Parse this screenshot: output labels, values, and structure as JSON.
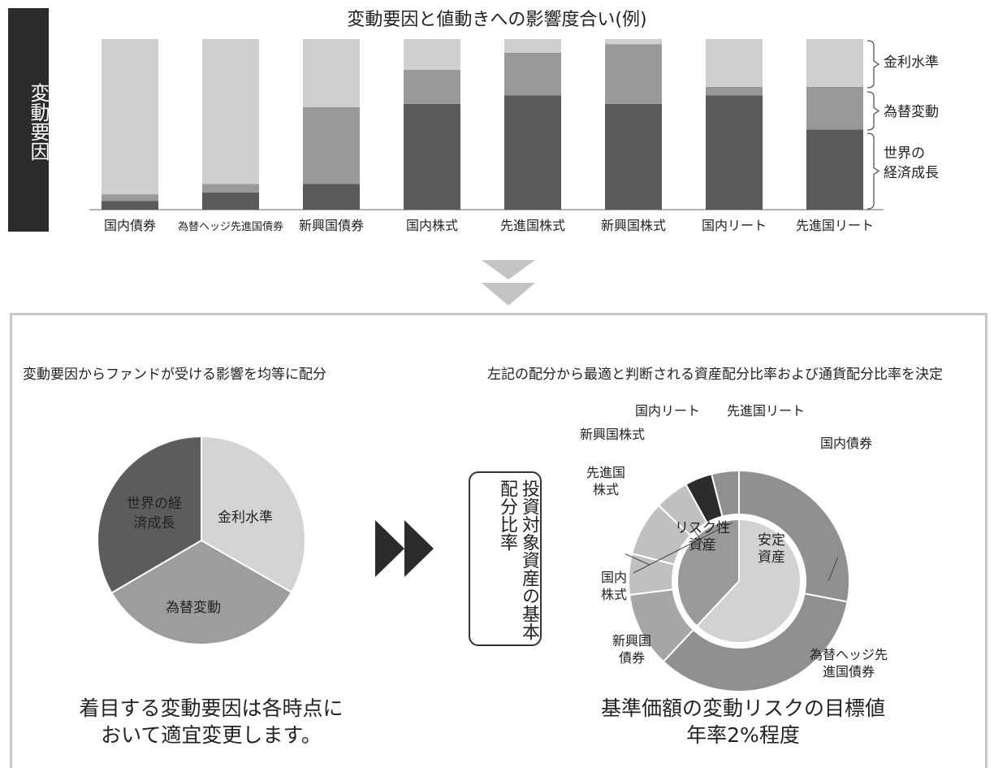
{
  "header": {
    "side_label": "変動要因",
    "title": "変動要因と値動きへの影響度合い(例)"
  },
  "chart_data": [
    {
      "type": "bar",
      "stacked": true,
      "title": "変動要因と値動きへの影響度合い(例)",
      "categories": [
        "国内債券",
        "為替ヘッジ先進国債券",
        "新興国債券",
        "国内株式",
        "先進国株式",
        "新興国株式",
        "国内リート",
        "先進国リート"
      ],
      "series": [
        {
          "name": "世界の経済成長",
          "values": [
            5,
            10,
            15,
            62,
            67,
            62,
            67,
            47
          ],
          "color": "#5a5a5a"
        },
        {
          "name": "為替変動",
          "values": [
            4,
            5,
            45,
            20,
            25,
            35,
            5,
            25
          ],
          "color": "#999999"
        },
        {
          "name": "金利水準",
          "values": [
            91,
            85,
            40,
            18,
            8,
            3,
            28,
            28
          ],
          "color": "#cfcfcf"
        }
      ],
      "ylim": [
        0,
        100
      ],
      "legend_placement": "right",
      "bracket_labels": [
        "金利水準",
        "為替変動",
        "世界の経済成長"
      ]
    },
    {
      "type": "pie",
      "title": "変動要因からファンドが受ける影響を均等に配分",
      "slices": [
        {
          "label": "金利水準",
          "value": 33.3,
          "color": "#d4d4d4"
        },
        {
          "label": "為替変動",
          "value": 33.3,
          "color": "#9d9d9d"
        },
        {
          "label": "世界の経済成長",
          "value": 33.4,
          "color": "#5c5c5c"
        }
      ]
    },
    {
      "type": "pie",
      "subtype": "donut",
      "title": "左記の配分から最適と判断される資産配分比率および通貨配分比率を決定",
      "inner": [
        {
          "label": "安定資産",
          "value": 62,
          "color": "#d2d2d2"
        },
        {
          "label": "リスク性資産",
          "value": 38,
          "color": "#9a9a9a"
        }
      ],
      "outer": [
        {
          "label": "国内債券",
          "value": 28,
          "color": "#909090"
        },
        {
          "label": "為替ヘッジ先進国債券",
          "value": 34,
          "color": "#909090"
        },
        {
          "label": "新興国債券",
          "value": 11,
          "color": "#a6a6a6"
        },
        {
          "label": "国内株式",
          "value": 6,
          "color": "#c0c0c0"
        },
        {
          "label": "先進国株式",
          "value": 8,
          "color": "#c0c0c0"
        },
        {
          "label": "新興国株式",
          "value": 5,
          "color": "#c0c0c0"
        },
        {
          "label": "国内リート",
          "value": 4,
          "color": "#2c2c2c"
        },
        {
          "label": "先進国リート",
          "value": 4,
          "color": "#909090"
        }
      ]
    }
  ],
  "texts": {
    "left_heading": "変動要因からファンドが受ける影響を均等に配分",
    "right_heading": "左記の配分から最適と判断される資産配分比率および通貨配分比率を決定",
    "pie_kinri": "金利水準",
    "pie_kawase": "為替変動",
    "pie_seichou": "世界の経済成長",
    "vertical_box": "投資対象資産の基本配分比率",
    "bottom_left_1": "着目する変動要因は各時点に",
    "bottom_left_2": "おいて適宜変更します。",
    "bottom_right_1": "基準価額の変動リスクの目標値",
    "bottom_right_2": "年率2%程度"
  },
  "donut_labels": {
    "anzen": "安定資産",
    "risk": "リスク性資産",
    "kokunai_saiken": "国内債券",
    "hedge": "為替ヘッジ先進国債券",
    "shinkou_saiken": "新興国債券",
    "kokunai_kabu": "国内株式",
    "senshin_kabu": "先進国株式",
    "shinkou_kabu": "新興国株式",
    "kokunai_reit": "国内リート",
    "senshin_reit": "先進国リート"
  }
}
